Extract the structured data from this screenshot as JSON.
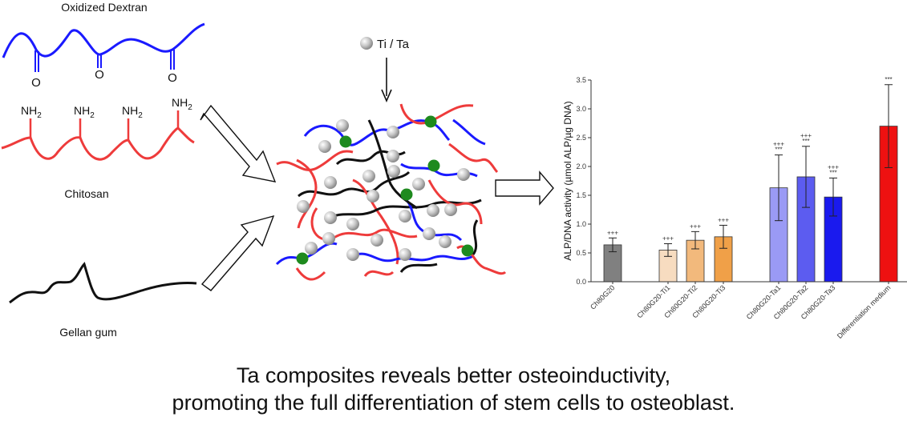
{
  "labels": {
    "oxidized_dextran": "Oxidized Dextran",
    "chitosan": "Chitosan",
    "gellan_gum": "Gellan  gum",
    "ti_ta": "Ti / Ta",
    "o": "O",
    "nh2": "NH",
    "nh2_sub": "2"
  },
  "caption": {
    "line1": "Ta composites reveals better osteoinductivity,",
    "line2": "promoting the full differentiation of stem cells to osteoblast."
  },
  "colors": {
    "dextran": "#1a1aff",
    "chitosan": "#ee3b3b",
    "gellan": "#111111",
    "crosslink": "#1e8a1e",
    "particle": "#bdbdbd"
  },
  "chart_data": {
    "type": "bar",
    "ylabel": "ALP/DNA activity (µmol ALP/µg DNA)",
    "ylim": [
      0,
      3.5
    ],
    "yticks": [
      "0.0",
      "0.5",
      "1.0",
      "1.5",
      "2.0",
      "2.5",
      "3.0",
      "3.5"
    ],
    "categories": [
      "Ch80G20",
      "Ch80G20-Ti1",
      "Ch80G20-Ti2",
      "Ch80G20-Ti3",
      "Ch80G20-Ta1",
      "Ch80G20-Ta2",
      "Ch80G20-Ta3",
      "Differentiation medium"
    ],
    "values": [
      0.64,
      0.55,
      0.72,
      0.78,
      1.63,
      1.82,
      1.47,
      2.7
    ],
    "errors": [
      0.12,
      0.11,
      0.15,
      0.2,
      0.57,
      0.53,
      0.33,
      0.72
    ],
    "colors": [
      "#808080",
      "#f7dcc0",
      "#f2b97c",
      "#f0a048",
      "#9a9af5",
      "#5c5cf0",
      "#1a1aee",
      "#ee1111"
    ],
    "annotations_plus": [
      "+++",
      "+++",
      "+++",
      "+++",
      "+++",
      "+++",
      "+++",
      ""
    ],
    "annotations_star": [
      "",
      "",
      "",
      "",
      "***",
      "***",
      "***",
      "***"
    ]
  }
}
